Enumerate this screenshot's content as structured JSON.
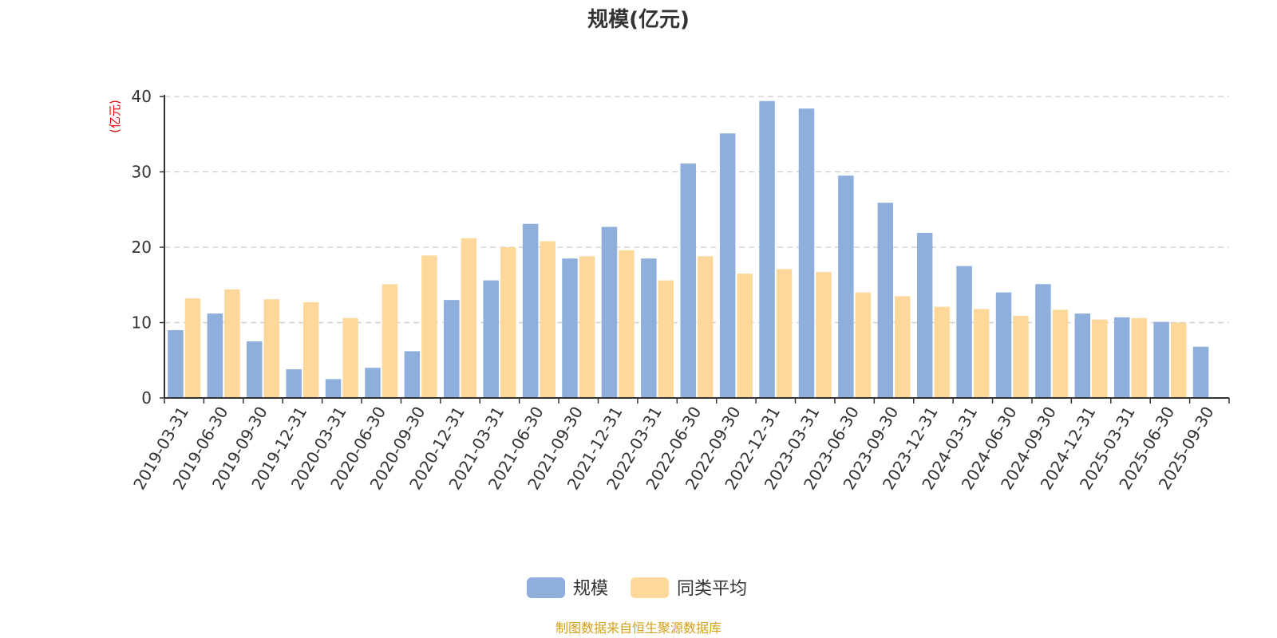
{
  "chart_data": {
    "type": "bar",
    "title": "规模(亿元)",
    "ylabel": "(亿元)",
    "xlabel": "",
    "ylim": [
      0,
      40
    ],
    "yticks": [
      0,
      10,
      20,
      30,
      40
    ],
    "grid": true,
    "legend_position": "bottom",
    "categories": [
      "2019-03-31",
      "2019-06-30",
      "2019-09-30",
      "2019-12-31",
      "2020-03-31",
      "2020-06-30",
      "2020-09-30",
      "2020-12-31",
      "2021-03-31",
      "2021-06-30",
      "2021-09-30",
      "2021-12-31",
      "2022-03-31",
      "2022-06-30",
      "2022-09-30",
      "2022-12-31",
      "2023-03-31",
      "2023-06-30",
      "2023-09-30",
      "2023-12-31",
      "2024-03-31",
      "2024-06-30",
      "2024-09-30",
      "2024-12-31",
      "2025-03-31",
      "2025-06-30",
      "2025-09-30"
    ],
    "series": [
      {
        "name": "规模",
        "color": "#8eaedb",
        "values": [
          9.0,
          11.2,
          7.5,
          3.8,
          2.5,
          4.0,
          6.2,
          13.0,
          15.6,
          23.1,
          18.5,
          22.7,
          18.5,
          31.1,
          35.1,
          39.4,
          38.4,
          29.5,
          25.9,
          21.9,
          17.5,
          14.0,
          15.1,
          11.2,
          10.7,
          10.1,
          6.8
        ]
      },
      {
        "name": "同类平均",
        "color": "#fdd89a",
        "values": [
          13.2,
          14.4,
          13.1,
          12.7,
          10.6,
          15.1,
          18.9,
          21.2,
          20.0,
          20.8,
          18.8,
          19.6,
          15.6,
          18.8,
          16.5,
          17.1,
          16.7,
          14.0,
          13.5,
          12.1,
          11.8,
          10.9,
          11.7,
          10.4,
          10.6,
          10.0,
          null
        ]
      }
    ]
  },
  "source_note": "制图数据来自恒生聚源数据库",
  "colors": {
    "text": "#333333",
    "grid": "#cccccc",
    "axis": "#333333",
    "unit_label": "#e00000",
    "source_note": "#d4a017"
  }
}
